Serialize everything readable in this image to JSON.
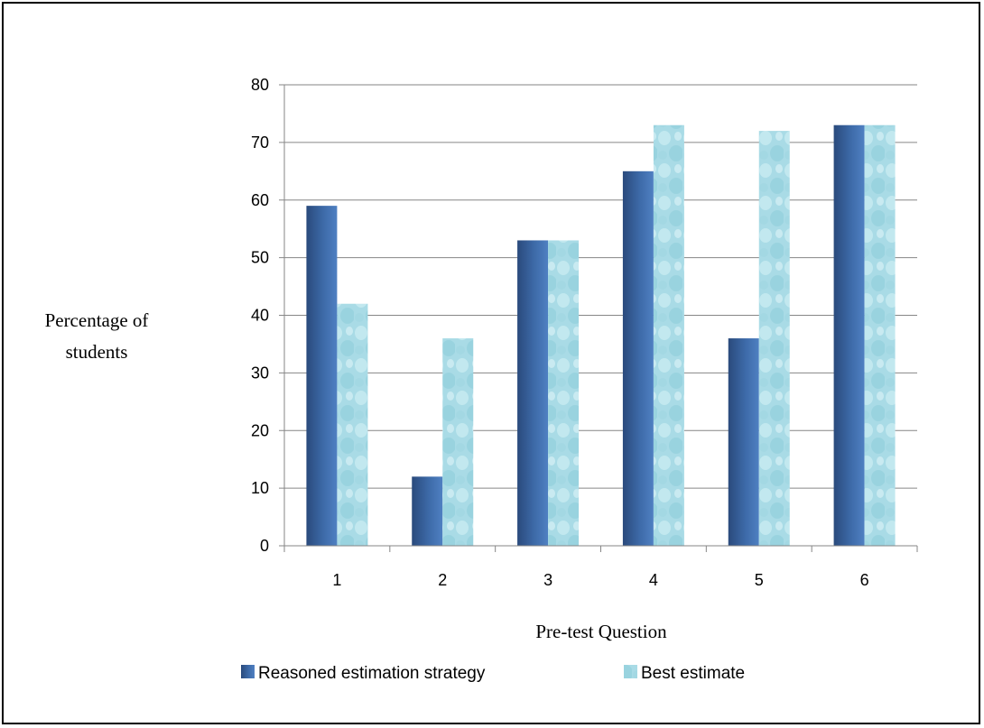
{
  "chart_data": {
    "type": "bar",
    "categories": [
      "1",
      "2",
      "3",
      "4",
      "5",
      "6"
    ],
    "series": [
      {
        "name": "Reasoned estimation strategy",
        "values": [
          59,
          12,
          53,
          65,
          36,
          73
        ]
      },
      {
        "name": "Best estimate",
        "values": [
          42,
          36,
          53,
          73,
          72,
          73
        ]
      }
    ],
    "title": "",
    "xlabel": "Pre-test Question",
    "ylabel_lines": [
      "Percentage of",
      "students"
    ],
    "ylim": [
      0,
      80
    ],
    "yticks": [
      0,
      10,
      20,
      30,
      40,
      50,
      60,
      70,
      80
    ],
    "grid": true,
    "legend_position": "bottom-left",
    "colors": {
      "series1": "#3d6aa8",
      "series2": "#a9dbe6"
    }
  }
}
